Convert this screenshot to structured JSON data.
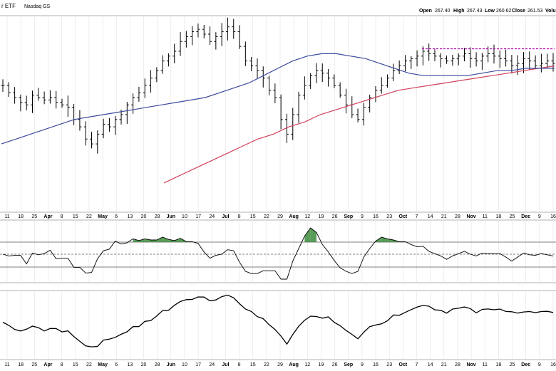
{
  "header": {
    "left_title": "r ETF",
    "exchange": "Nasdaq GS",
    "open_label": "Open",
    "open_value": "267.40",
    "high_label": "High",
    "high_value": "267.43",
    "low_label": "Low",
    "low_value": "260.62",
    "close_label": "Close",
    "close_value": "261.53",
    "volume_label": "Volu"
  },
  "x_tick_labels": [
    "11",
    "18",
    "25",
    "Apr",
    "8",
    "15",
    "22",
    "May",
    "6",
    "13",
    "20",
    "28",
    "Jun",
    "10",
    "17",
    "24",
    "Jul",
    "8",
    "15",
    "22",
    "29",
    "Aug",
    "12",
    "19",
    "26",
    "Sep",
    "9",
    "16",
    "23",
    "Oct",
    "7",
    "14",
    "21",
    "28",
    "Nov",
    "11",
    "18",
    "25",
    "Dec",
    "9",
    "16"
  ],
  "colors": {
    "bars": "#000000",
    "ma_short": "#3a4a9c",
    "ma_long": "#d0405a",
    "resistance": "#b000b0",
    "indicator_fill": "#3c8a3c",
    "grid": "#cccccc",
    "background": "#ffffff"
  },
  "chart_data": [
    {
      "type": "line",
      "panel": "price",
      "note_style": "ohlc bars with two moving averages and a horizontal resistance line",
      "price_closes": [
        252,
        249,
        247,
        245,
        244,
        248,
        247,
        246,
        247,
        245,
        244,
        243,
        238,
        235,
        230,
        228,
        232,
        236,
        235,
        238,
        240,
        244,
        247,
        249,
        252,
        255,
        258,
        262,
        264,
        266,
        270,
        272,
        274,
        275,
        273,
        270,
        272,
        274,
        276,
        274,
        268,
        262,
        260,
        258,
        255,
        250,
        247,
        238,
        232,
        240,
        248,
        252,
        256,
        258,
        257,
        255,
        252,
        248,
        244,
        240,
        238,
        243,
        247,
        250,
        252,
        255,
        258,
        260,
        262,
        263,
        264,
        266,
        265,
        264,
        263,
        262,
        263,
        264,
        265,
        263,
        262,
        264,
        265,
        264,
        263,
        262,
        260,
        261,
        263,
        262,
        260,
        261,
        262,
        261
      ],
      "ma_short": [
        228,
        230,
        232,
        234,
        236,
        238,
        239,
        240,
        241,
        242,
        243,
        244,
        245,
        246,
        247,
        249,
        251,
        253,
        256,
        259,
        262,
        264,
        265,
        265,
        264,
        263,
        261,
        259,
        257,
        256,
        256,
        256,
        256,
        257,
        258,
        258,
        259,
        259,
        259
      ],
      "ma_long": [
        212,
        215,
        218,
        221,
        224,
        227,
        230,
        232,
        235,
        237,
        240,
        242,
        244,
        246,
        248,
        250,
        251,
        252,
        253,
        254,
        255,
        256,
        257,
        258,
        259,
        260
      ],
      "resistance_level": 267
    },
    {
      "type": "line",
      "panel": "momentum_oscillator",
      "reference_levels": [
        "upper",
        "mid",
        "lower"
      ]
    },
    {
      "type": "line",
      "panel": "relative_strength"
    }
  ]
}
